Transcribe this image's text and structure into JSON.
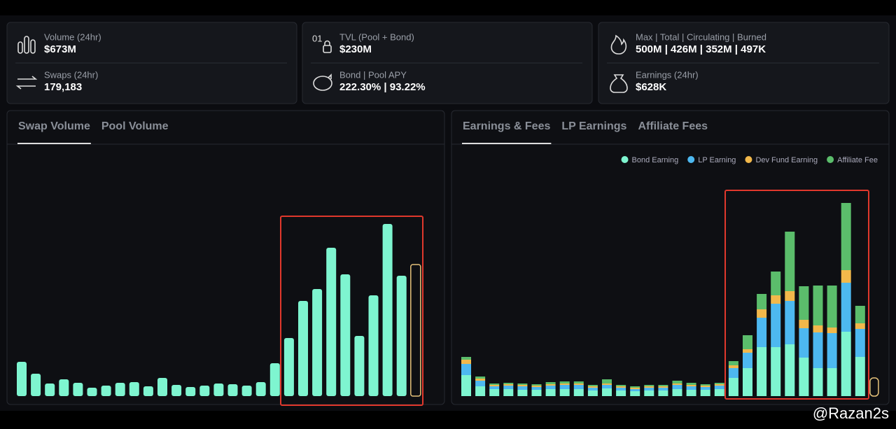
{
  "stats": [
    {
      "label": "Volume (24hr)",
      "value": "$673M"
    },
    {
      "label": "Swaps (24hr)",
      "value": "179,183"
    },
    {
      "label": "TVL (Pool + Bond)",
      "value": "$230M"
    },
    {
      "label": "Bond | Pool APY",
      "value": "222.30% | 93.22%"
    },
    {
      "label": "Max | Total | Circulating | Burned",
      "value": "500M | 426M | 352M | 497K"
    },
    {
      "label": "Earnings (24hr)",
      "value": "$628K"
    }
  ],
  "charts": [
    {
      "type": "bar",
      "tabs": [
        "Swap Volume",
        "Pool Volume"
      ],
      "color": "#7ef5d0",
      "values": [
        49,
        32,
        18,
        24,
        19,
        12,
        15,
        19,
        20,
        14,
        26,
        16,
        13,
        15,
        18,
        17,
        15,
        20,
        47,
        83,
        136,
        153,
        212,
        174,
        86,
        144,
        246,
        172,
        188
      ]
    },
    {
      "type": "stacked_bar",
      "tabs": [
        "Earnings & Fees",
        "LP Earnings",
        "Affiliate Fees"
      ],
      "series": [
        {
          "name": "Bond Earning",
          "color": "#7ef5d0",
          "values": [
            30,
            14,
            10,
            10,
            9,
            9,
            10,
            10,
            10,
            8,
            11,
            8,
            7,
            8,
            8,
            10,
            9,
            9,
            10,
            26,
            40,
            70,
            70,
            74,
            55,
            40,
            40,
            92,
            56,
            26
          ]
        },
        {
          "name": "LP Earning",
          "color": "#4db8f0",
          "values": [
            16,
            8,
            4,
            5,
            5,
            4,
            5,
            6,
            6,
            4,
            5,
            4,
            3,
            4,
            4,
            6,
            5,
            4,
            5,
            14,
            22,
            42,
            62,
            62,
            42,
            51,
            50,
            70,
            40,
            0
          ]
        },
        {
          "name": "Dev Fund Earning",
          "color": "#f2b84b",
          "values": [
            6,
            3,
            2,
            2,
            2,
            2,
            2,
            2,
            2,
            2,
            2,
            2,
            2,
            2,
            2,
            2,
            2,
            2,
            2,
            4,
            5,
            12,
            12,
            14,
            12,
            10,
            8,
            18,
            8,
            0
          ]
        },
        {
          "name": "Affiliate Fee",
          "color": "#5bbd6b",
          "values": [
            4,
            3,
            2,
            2,
            2,
            2,
            3,
            3,
            3,
            2,
            6,
            2,
            2,
            2,
            2,
            4,
            3,
            2,
            2,
            6,
            20,
            22,
            34,
            85,
            48,
            57,
            60,
            96,
            25,
            0
          ]
        }
      ]
    }
  ],
  "watermark": "@Razan2s"
}
